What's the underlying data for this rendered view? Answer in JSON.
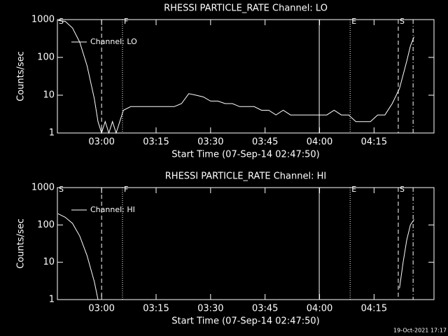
{
  "chart_data": [
    {
      "type": "line",
      "title": "RHESSI PARTICLE_RATE Channel: LO",
      "xlabel": "Start Time (07-Sep-14 02:47:50)",
      "ylabel": "Counts/sec",
      "log_y": true,
      "ylim": [
        1,
        1000
      ],
      "yticks": [
        1,
        10,
        100,
        1000
      ],
      "xlim": [
        "02:47:50",
        "04:31:30"
      ],
      "xticks": [
        "03:00",
        "03:15",
        "03:30",
        "03:45",
        "04:00",
        "04:15"
      ],
      "x": [
        "02:48",
        "02:50",
        "02:52",
        "02:54",
        "02:56",
        "02:58",
        "02:59",
        "03:00",
        "03:01",
        "03:02",
        "03:03",
        "03:04",
        "03:05",
        "03:06",
        "03:08",
        "03:10",
        "03:12",
        "03:14",
        "03:16",
        "03:18",
        "03:20",
        "03:22",
        "03:24",
        "03:26",
        "03:28",
        "03:30",
        "03:32",
        "03:34",
        "03:36",
        "03:38",
        "03:40",
        "03:42",
        "03:44",
        "03:46",
        "03:48",
        "03:50",
        "03:52",
        "03:54",
        "03:56",
        "03:58",
        "04:00",
        "04:02",
        "04:04",
        "04:06",
        "04:08",
        "04:10",
        "04:12",
        "04:14",
        "04:16",
        "04:18",
        "04:20",
        "04:22",
        "04:24",
        "04:25",
        "04:26"
      ],
      "series": [
        {
          "name": "Channel: LO",
          "color": "#ffffff",
          "values": [
            950,
            900,
            600,
            250,
            60,
            8,
            2,
            1,
            2,
            1,
            2,
            1,
            2,
            4,
            5,
            5,
            5,
            5,
            5,
            5,
            5,
            6,
            11,
            10,
            9,
            7,
            7,
            6,
            6,
            5,
            5,
            5,
            4,
            4,
            3,
            4,
            3,
            3,
            3,
            3,
            3,
            3,
            4,
            3,
            3,
            2,
            2,
            2,
            3,
            3,
            6,
            15,
            80,
            200,
            350
          ]
        }
      ],
      "legend": "upper-left",
      "markers": [
        {
          "x": "03:00:00",
          "style": "dashed"
        },
        {
          "x": "03:05:45",
          "style": "dotted"
        },
        {
          "x": "03:59:55",
          "style": "solid"
        },
        {
          "x": "04:08:25",
          "style": "dotted"
        },
        {
          "x": "04:21:40",
          "style": "dashed"
        },
        {
          "x": "04:25:45",
          "style": "dash-dot"
        }
      ],
      "flags": [
        {
          "x": "02:47:50",
          "label": "S"
        },
        {
          "x": "03:05:45",
          "label": "F"
        },
        {
          "x": "04:08:25",
          "label": "E"
        },
        {
          "x": "04:21:40",
          "label": "S"
        }
      ]
    },
    {
      "type": "line",
      "title": "RHESSI PARTICLE_RATE Channel: HI",
      "xlabel": "Start Time (07-Sep-14 02:47:50)",
      "ylabel": "Counts/sec",
      "log_y": true,
      "ylim": [
        1,
        1000
      ],
      "yticks": [
        1,
        10,
        100,
        1000
      ],
      "xlim": [
        "02:47:50",
        "04:31:30"
      ],
      "xticks": [
        "03:00",
        "03:15",
        "03:30",
        "03:45",
        "04:00",
        "04:15"
      ],
      "x": [
        "02:48",
        "02:50",
        "02:52",
        "02:54",
        "02:56",
        "02:58",
        "02:59",
        "03:00",
        "04:21",
        "04:22",
        "04:23",
        "04:24",
        "04:25",
        "04:26"
      ],
      "series": [
        {
          "name": "Channel: HI",
          "color": "#ffffff",
          "values": [
            200,
            160,
            110,
            50,
            15,
            3,
            1,
            null,
            null,
            2,
            10,
            40,
            100,
            140
          ]
        }
      ],
      "legend": "upper-left",
      "markers": [
        {
          "x": "03:00:00",
          "style": "dashed"
        },
        {
          "x": "03:05:45",
          "style": "dotted"
        },
        {
          "x": "03:59:55",
          "style": "solid"
        },
        {
          "x": "04:08:25",
          "style": "dotted"
        },
        {
          "x": "04:21:40",
          "style": "dashed"
        },
        {
          "x": "04:25:45",
          "style": "dash-dot"
        }
      ],
      "flags": [
        {
          "x": "02:47:50",
          "label": "S"
        },
        {
          "x": "03:05:45",
          "label": "F"
        },
        {
          "x": "04:08:25",
          "label": "E"
        },
        {
          "x": "04:21:40",
          "label": "S"
        }
      ]
    }
  ],
  "footer": "19-Oct-2021 17:17"
}
